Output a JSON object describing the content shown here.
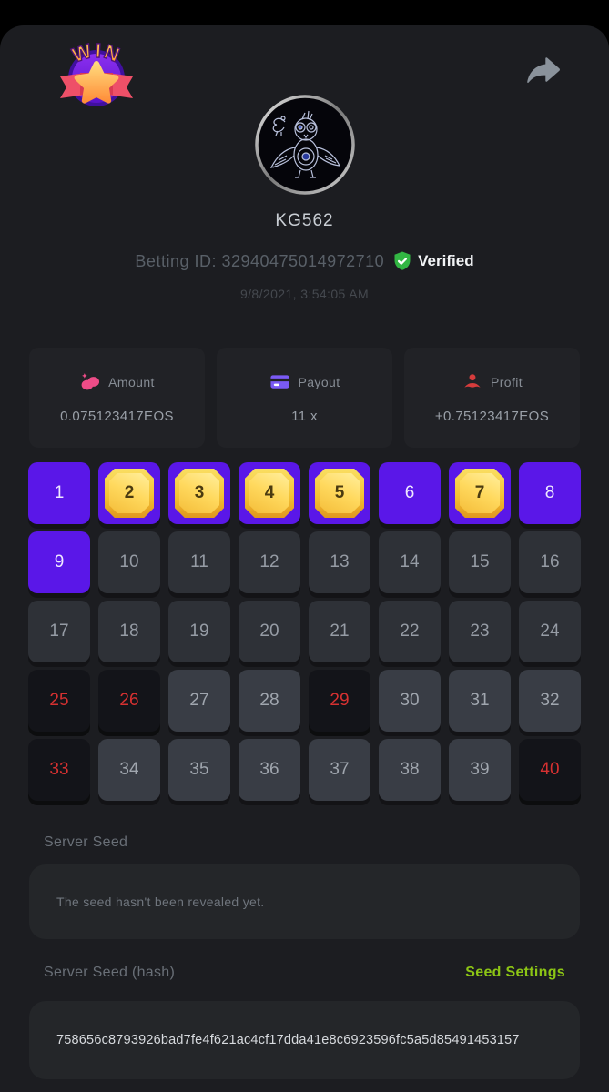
{
  "header": {
    "result_badge_text": "WIN"
  },
  "profile": {
    "username": "KG562",
    "betting_id_line": "Betting ID: 32940475014972710",
    "verified_label": "Verified",
    "timestamp": "9/8/2021, 3:54:05 AM"
  },
  "stats": {
    "cards": [
      {
        "label": "Amount",
        "value": "0.075123417EOS",
        "icon": "coins-icon",
        "icon_color": "#ed4c87"
      },
      {
        "label": "Payout",
        "value": "11 x",
        "icon": "credit-card-icon",
        "icon_color": "#7a5af5"
      },
      {
        "label": "Profit",
        "value": "+0.75123417EOS",
        "icon": "hand-profit-icon",
        "icon_color": "#d63c3c"
      }
    ]
  },
  "keno": {
    "legend": {
      "selected_color": "#5a17e8",
      "hit_gem_color": "#f3c234",
      "miss_number_color": "#d63131"
    },
    "tiles": [
      {
        "n": 1,
        "state": "selected"
      },
      {
        "n": 2,
        "state": "hit"
      },
      {
        "n": 3,
        "state": "hit"
      },
      {
        "n": 4,
        "state": "hit"
      },
      {
        "n": 5,
        "state": "hit"
      },
      {
        "n": 6,
        "state": "selected"
      },
      {
        "n": 7,
        "state": "hit"
      },
      {
        "n": 8,
        "state": "selected"
      },
      {
        "n": 9,
        "state": "selected"
      },
      {
        "n": 10,
        "state": "idle"
      },
      {
        "n": 11,
        "state": "idle"
      },
      {
        "n": 12,
        "state": "idle"
      },
      {
        "n": 13,
        "state": "idle"
      },
      {
        "n": 14,
        "state": "idle"
      },
      {
        "n": 15,
        "state": "idle"
      },
      {
        "n": 16,
        "state": "idle"
      },
      {
        "n": 17,
        "state": "idle"
      },
      {
        "n": 18,
        "state": "idle"
      },
      {
        "n": 19,
        "state": "idle"
      },
      {
        "n": 20,
        "state": "idle"
      },
      {
        "n": 21,
        "state": "idle"
      },
      {
        "n": 22,
        "state": "idle"
      },
      {
        "n": 23,
        "state": "idle"
      },
      {
        "n": 24,
        "state": "idle"
      },
      {
        "n": 25,
        "state": "miss"
      },
      {
        "n": 26,
        "state": "miss"
      },
      {
        "n": 27,
        "state": "idle"
      },
      {
        "n": 28,
        "state": "idle"
      },
      {
        "n": 29,
        "state": "miss"
      },
      {
        "n": 30,
        "state": "idle"
      },
      {
        "n": 31,
        "state": "idle"
      },
      {
        "n": 32,
        "state": "idle"
      },
      {
        "n": 33,
        "state": "miss"
      },
      {
        "n": 34,
        "state": "idle"
      },
      {
        "n": 35,
        "state": "idle"
      },
      {
        "n": 36,
        "state": "idle"
      },
      {
        "n": 37,
        "state": "idle"
      },
      {
        "n": 38,
        "state": "idle"
      },
      {
        "n": 39,
        "state": "idle"
      },
      {
        "n": 40,
        "state": "miss"
      }
    ]
  },
  "server_seed": {
    "label": "Server Seed",
    "placeholder": "The seed hasn't been revealed yet."
  },
  "server_seed_hash": {
    "label": "Server Seed (hash)",
    "settings_link": "Seed Settings",
    "value": "758656c8793926bad7fe4f621ac4cf17dda41e8c6923596fc5a5d85491453157"
  }
}
